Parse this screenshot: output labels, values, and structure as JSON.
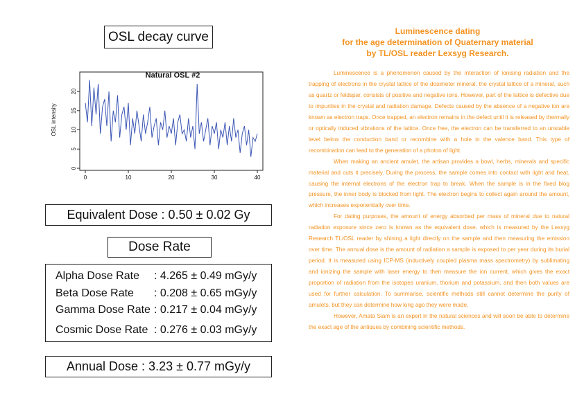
{
  "decay_panel": {
    "title": "OSL decay curve"
  },
  "chart_data": {
    "type": "line",
    "title": "Natural OSL #2",
    "xlabel": "",
    "ylabel": "OSL intensity",
    "xlim": [
      0,
      40
    ],
    "ylim": [
      0,
      24
    ],
    "xticks": [
      "0",
      "10",
      "20",
      "30",
      "40"
    ],
    "yticks": [
      "0",
      "5",
      "10",
      "15",
      "20"
    ],
    "grid": false,
    "series": [
      {
        "color": "#3a55b4",
        "x": [
          0,
          0.5,
          1,
          1.5,
          2,
          2.5,
          3,
          3.5,
          4,
          4.5,
          5,
          5.5,
          6,
          6.5,
          7,
          7.5,
          8,
          8.5,
          9,
          9.5,
          10,
          10.5,
          11,
          11.5,
          12,
          12.5,
          13,
          13.5,
          14,
          14.5,
          15,
          15.5,
          16,
          16.5,
          17,
          17.5,
          18,
          18.5,
          19,
          19.5,
          20,
          20.5,
          21,
          21.5,
          22,
          22.5,
          23,
          23.5,
          24,
          24.5,
          25,
          25.5,
          26,
          26.5,
          27,
          27.5,
          28,
          28.5,
          29,
          29.5,
          30,
          30.5,
          31,
          31.5,
          32,
          32.5,
          33,
          33.5,
          34,
          34.5,
          35,
          35.5,
          36,
          36.5,
          37,
          37.5,
          38,
          38.5,
          39,
          39.5,
          40
        ],
        "y": [
          17,
          12,
          23,
          11,
          21,
          14,
          22,
          9,
          16,
          18,
          11,
          20,
          7,
          15,
          12,
          19,
          8,
          14,
          16,
          10,
          17,
          6,
          13,
          9,
          15,
          11,
          7,
          14,
          9,
          12,
          16,
          8,
          11,
          13,
          6,
          12,
          10,
          15,
          8,
          11,
          9,
          13,
          6,
          12,
          14,
          9,
          10,
          7,
          13,
          8,
          11,
          5,
          22,
          9,
          12,
          7,
          10,
          13,
          6,
          11,
          9,
          12,
          5,
          10,
          8,
          12,
          6,
          11,
          7,
          13,
          8,
          10,
          4,
          9,
          11,
          6,
          10,
          3,
          8,
          7,
          9
        ]
      }
    ]
  },
  "equivalent_dose": "Equivalent Dose : 0.50 ± 0.02 Gy",
  "dose_rate": {
    "title": "Dose Rate",
    "rows": [
      {
        "label": "Alpha Dose Rate",
        "value": ": 4.265 ± 0.49 mGy/y"
      },
      {
        "label": "Beta Dose Rate",
        "value": ": 0.208 ± 0.65 mGy/y"
      },
      {
        "label": "Gamma Dose Rate",
        "value": ": 0.217 ± 0.04 mGy/y"
      },
      {
        "label": "Cosmic Dose Rate",
        "value": ": 0.276 ± 0.03 mGy/y"
      }
    ]
  },
  "annual_dose": "Annual Dose : 3.23 ± 0.77 mGy/y",
  "article": {
    "title_lines": [
      "Luminescence dating",
      "for the age determination of Quaternary material",
      "by TL/OSL reader Lexsyg Research."
    ],
    "paragraphs": [
      "Luminescence is a phenomenon caused by the interaction of ionising radiation and the trapping of electrons in the crystal lattice of the dosimeter mineral. the crystal lattice of a mineral, such as quartz or feldspar, consists of positive and negative ions. However, part of the lattice is defective due to impurities in the crystal and radiation damage. Defects caused by the absence of a negative ion are known as electron traps. Once trapped, an electron remains in the defect until it is released by thermally or optically induced vibrations of the lattice. Once free, the electron can be transferred to an unstable level below the conduction band or recombine with a hole in the valence band. This type of recombination can lead to the generation of a photon of light.",
      "When making an ancient amulet, the artisan provides a bowl, herbs, minerals and specific material and cuts it precisely. During the process, the sample comes into contact with light and heat, causing the internal electrons of the electron trap to break. When the sample is in the fixed blog pressure, the inner body is blocked from light. The electron begins to collect again around the amount, which increases exponentially over time.",
      "For dating purposes, the amount of energy absorbed per mass of mineral due to natural radiation exposure since zero is known as the equivalent dose, which is measured by the Lexsyg Research TL/OSL reader by shining a light directly on the sample and then measuring the emission over time. The annual dose is the amount of radiation a sample is exposed to per year during its burial period. It is measured using ICP-MS (inductively coupled plasma mass spectrometry) by sublimating and ionizing the sample with laser energy to then measure the ion current, which gives the exact proportion of radiation from the isotopes uranium, thorium and potassium, and then both values are used for further calculation. To summarise, scientific methods still cannot determine the purity of amulets, but they can determine how long ago they were made.",
      "However, Amata Siam is an expert in the natural sciences and will soon be able to determine the exact age of the antiques by combining scientific methods."
    ]
  }
}
